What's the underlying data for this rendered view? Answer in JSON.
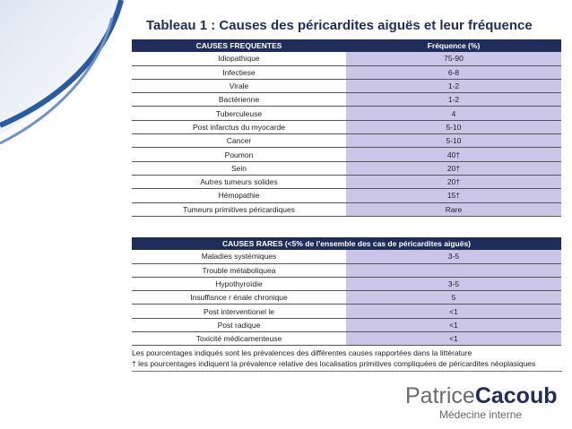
{
  "title": "Tableau 1 : Causes des péricardites aiguës et leur fréquence",
  "table1": {
    "header": [
      "CAUSES FREQUENTES",
      "Fréquence (%)"
    ],
    "rows": [
      [
        "Idiopathique",
        "75-90"
      ],
      [
        "Infectiese",
        "6-8"
      ],
      [
        "Virale",
        "1-2"
      ],
      [
        "Bactérienne",
        "1-2"
      ],
      [
        "Tuberculeuse",
        "4"
      ],
      [
        "Post infarctus du myocarde",
        "5-10"
      ],
      [
        "Cancer",
        "5-10"
      ],
      [
        "Poumon",
        "40†"
      ],
      [
        "Sein",
        "20†"
      ],
      [
        "Autres tumeurs solides",
        "20†"
      ],
      [
        "Hémopathie",
        "15†"
      ],
      [
        "Tumeurs primitives péricardiques",
        "Rare"
      ]
    ]
  },
  "table2": {
    "header": "CAUSES RARES (<5% de l’ensemble des cas de péricardites aiguës)",
    "rows": [
      [
        "Maladies systémiques",
        "3-5"
      ],
      [
        "Trouble métaboliquea",
        null
      ],
      [
        "Hypothyroïdie",
        "3-5"
      ],
      [
        "Insuffisnce r énale chronique",
        "5"
      ],
      [
        "Post interventionel le",
        "<1"
      ],
      [
        "Post radique",
        "<1"
      ],
      [
        "Toxicité médicamenteuse",
        "<1"
      ]
    ]
  },
  "notes": [
    "Les pourcentages indiqués sont les prévalences des différentes causes rapportées dans la littérature",
    "† les pourcentages indiquent la prévalence relative des localisatios primitives compliquées de péricardites néoplasiques"
  ],
  "logo": {
    "name_light": "Patrice",
    "name_bold": "Cacoub",
    "subtitle": "Médecine interne"
  }
}
